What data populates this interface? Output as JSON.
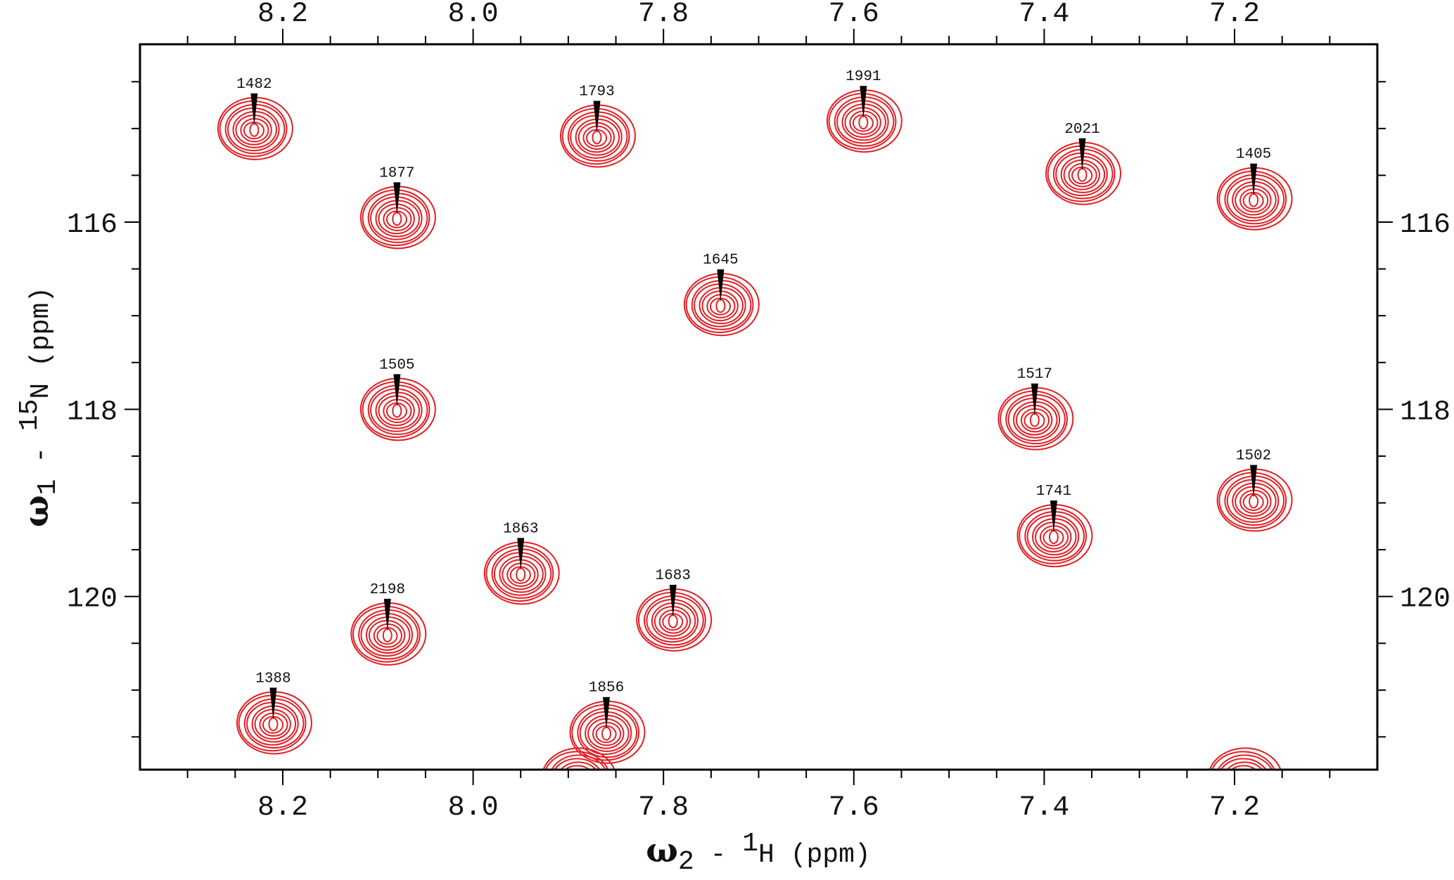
{
  "chart_data": {
    "type": "scatter",
    "subtype": "2D NMR HSQC contour spectrum",
    "x_axis": {
      "label_symbol": "ω",
      "label_subscript": "2",
      "label_nucleus_mass": "1",
      "label_nucleus": "H",
      "label_units": "(ppm)",
      "range": [
        8.35,
        7.05
      ],
      "reversed": true,
      "ticks": [
        8.2,
        8.0,
        7.8,
        7.6,
        7.4,
        7.2
      ],
      "tick_labels": [
        "8.2",
        "8.0",
        "7.8",
        "7.6",
        "7.4",
        "7.2"
      ],
      "tick_labels_top_and_bottom": true
    },
    "y_axis": {
      "label_symbol": "ω",
      "label_subscript": "1",
      "label_nucleus_mass": "15",
      "label_nucleus": "N",
      "label_units": "(ppm)",
      "range": [
        114.1,
        121.85
      ],
      "reversed": true,
      "ticks": [
        116,
        118,
        120
      ],
      "tick_labels": [
        "116",
        "118",
        "120"
      ],
      "tick_labels_left_and_right": true
    },
    "contour_color": "#e31e24",
    "peaks": [
      {
        "label": "1482",
        "x": 8.23,
        "y": 115.0
      },
      {
        "label": "1793",
        "x": 7.87,
        "y": 115.08
      },
      {
        "label": "1991",
        "x": 7.59,
        "y": 114.92
      },
      {
        "label": "2021",
        "x": 7.36,
        "y": 115.48
      },
      {
        "label": "1405",
        "x": 7.18,
        "y": 115.75
      },
      {
        "label": "1877",
        "x": 8.08,
        "y": 115.95
      },
      {
        "label": "1645",
        "x": 7.74,
        "y": 116.88
      },
      {
        "label": "1505",
        "x": 8.08,
        "y": 118.0
      },
      {
        "label": "1517",
        "x": 7.41,
        "y": 118.1
      },
      {
        "label": "1502",
        "x": 7.18,
        "y": 118.97
      },
      {
        "label": "1741",
        "x": 7.39,
        "y": 119.35
      },
      {
        "label": "1863",
        "x": 7.95,
        "y": 119.75
      },
      {
        "label": "1683",
        "x": 7.79,
        "y": 120.25
      },
      {
        "label": "2198",
        "x": 8.09,
        "y": 120.4
      },
      {
        "label": "1388",
        "x": 8.21,
        "y": 121.35
      },
      {
        "label": "1856",
        "x": 7.86,
        "y": 121.45
      }
    ],
    "partial_peaks": [
      {
        "x": 7.89,
        "y": 121.95
      },
      {
        "x": 7.19,
        "y": 121.95
      }
    ]
  }
}
